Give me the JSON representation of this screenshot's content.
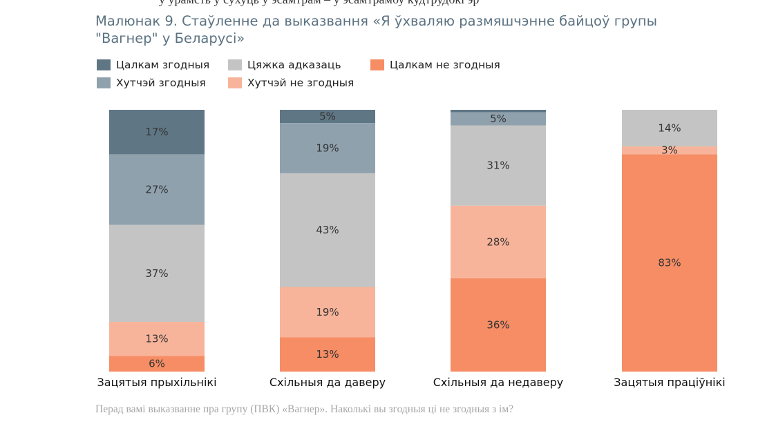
{
  "top_clipped_text": "у урамсть у сухуць у эсамтрам – у эсамтрамбу кудтрудбкі эр",
  "figure": {
    "title_line1": "Малюнак 9. Стаўленне да выказвання «Я ўхваляю размяшчэнне байцоў групы",
    "title_line2": "\"Вагнер\" у Беларусі»"
  },
  "footnote": "Перад вамі выказванне пра групу (ПВК) «Вагнер». Наколькі вы згодныя ці не згодныя з ім?",
  "chart_data": {
    "type": "bar",
    "stacked": true,
    "percent_stacked": true,
    "title": "Малюнак 9. Стаўленне да выказвання «Я ўхваляю размяшчэнне байцоў групы \"Вагнер\" у Беларусі»",
    "categories": [
      "Зацятыя прыхільнікі",
      "Схільныя да даверу",
      "Схільныя да недаверу",
      "Зацятыя праціўнікі"
    ],
    "ylim": [
      0,
      100
    ],
    "grid": false,
    "legend_position": "top-left",
    "series": [
      {
        "name": "Цалкам згодныя",
        "color": "#5f7685",
        "values": [
          17,
          5,
          1,
          0
        ],
        "labels": [
          "17%",
          "5%",
          "",
          ""
        ]
      },
      {
        "name": "Хутчэй згодныя",
        "color": "#8fa1ad",
        "values": [
          27,
          19,
          5,
          0
        ],
        "labels": [
          "27%",
          "19%",
          "5%",
          ""
        ]
      },
      {
        "name": "Цяжка адказаць",
        "color": "#c4c4c4",
        "values": [
          37,
          43,
          31,
          14
        ],
        "labels": [
          "37%",
          "43%",
          "31%",
          "14%"
        ]
      },
      {
        "name": "Хутчэй не згодныя",
        "color": "#f8b49b",
        "values": [
          13,
          19,
          28,
          3
        ],
        "labels": [
          "13%",
          "19%",
          "28%",
          "3%"
        ]
      },
      {
        "name": "Цалкам не згодныя",
        "color": "#f68d65",
        "values": [
          6,
          13,
          36,
          83
        ],
        "labels": [
          "6%",
          "13%",
          "36%",
          "83%"
        ]
      }
    ]
  },
  "legend": {
    "items": [
      {
        "label": "Цалкам згодныя",
        "color": "#5f7685"
      },
      {
        "label": "Цяжка адказаць",
        "color": "#c4c4c4"
      },
      {
        "label": "Цалкам не згодныя",
        "color": "#f68d65"
      },
      {
        "label": "Хутчэй згодныя",
        "color": "#8fa1ad"
      },
      {
        "label": "Хутчэй не згодныя",
        "color": "#f8b49b"
      }
    ]
  }
}
